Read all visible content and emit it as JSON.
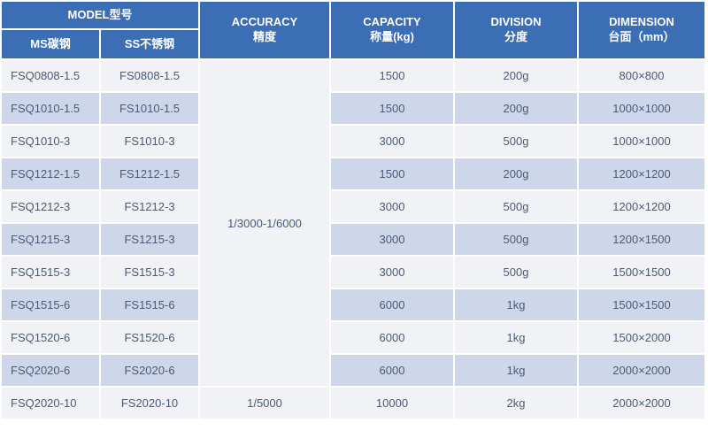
{
  "colors": {
    "header_bg": "#3b6eb5",
    "header_fg": "#ffffff",
    "row_even_bg": "#f0f2f5",
    "row_odd_bg": "#ced7ea",
    "cell_fg": "#4a5a78",
    "border": "#ffffff"
  },
  "headers": {
    "model": {
      "en": "MODEL",
      "cn": "型号"
    },
    "ms": {
      "en": "MS",
      "cn": "碳钢"
    },
    "ss": {
      "en": "SS",
      "cn": "不锈钢"
    },
    "accuracy": {
      "en": "ACCURACY",
      "cn": "精度"
    },
    "capacity": {
      "en": "CAPACITY",
      "cn": "称量(kg)"
    },
    "division": {
      "en": "DIVISION",
      "cn": "分度"
    },
    "dimension": {
      "en": "DIMENSION",
      "cn": "台面（mm）"
    }
  },
  "accuracy_groups": [
    {
      "text": "1/3000-1/6000",
      "rowspan": 10
    },
    {
      "text": "1/5000",
      "rowspan": 1
    }
  ],
  "rows": [
    {
      "ms": "FSQ0808-1.5",
      "ss": "FS0808-1.5",
      "capacity": "1500",
      "division": "200g",
      "dimension": "800×800"
    },
    {
      "ms": "FSQ1010-1.5",
      "ss": "FS1010-1.5",
      "capacity": "1500",
      "division": "200g",
      "dimension": "1000×1000"
    },
    {
      "ms": "FSQ1010-3",
      "ss": "FS1010-3",
      "capacity": "3000",
      "division": "500g",
      "dimension": "1000×1000"
    },
    {
      "ms": "FSQ1212-1.5",
      "ss": "FS1212-1.5",
      "capacity": "1500",
      "division": "200g",
      "dimension": "1200×1200"
    },
    {
      "ms": "FSQ1212-3",
      "ss": "FS1212-3",
      "capacity": "3000",
      "division": "500g",
      "dimension": "1200×1200"
    },
    {
      "ms": "FSQ1215-3",
      "ss": "FS1215-3",
      "capacity": "3000",
      "division": "500g",
      "dimension": "1200×1500"
    },
    {
      "ms": "FSQ1515-3",
      "ss": "FS1515-3",
      "capacity": "3000",
      "division": "500g",
      "dimension": "1500×1500"
    },
    {
      "ms": "FSQ1515-6",
      "ss": "FS1515-6",
      "capacity": "6000",
      "division": "1kg",
      "dimension": "1500×1500"
    },
    {
      "ms": "FSQ1520-6",
      "ss": "FS1520-6",
      "capacity": "6000",
      "division": "1kg",
      "dimension": "1500×2000"
    },
    {
      "ms": "FSQ2020-6",
      "ss": "FS2020-6",
      "capacity": "6000",
      "division": "1kg",
      "dimension": "2000×2000"
    },
    {
      "ms": "FSQ2020-10",
      "ss": "FS2020-10",
      "capacity": "10000",
      "division": "2kg",
      "dimension": "2000×2000"
    }
  ]
}
